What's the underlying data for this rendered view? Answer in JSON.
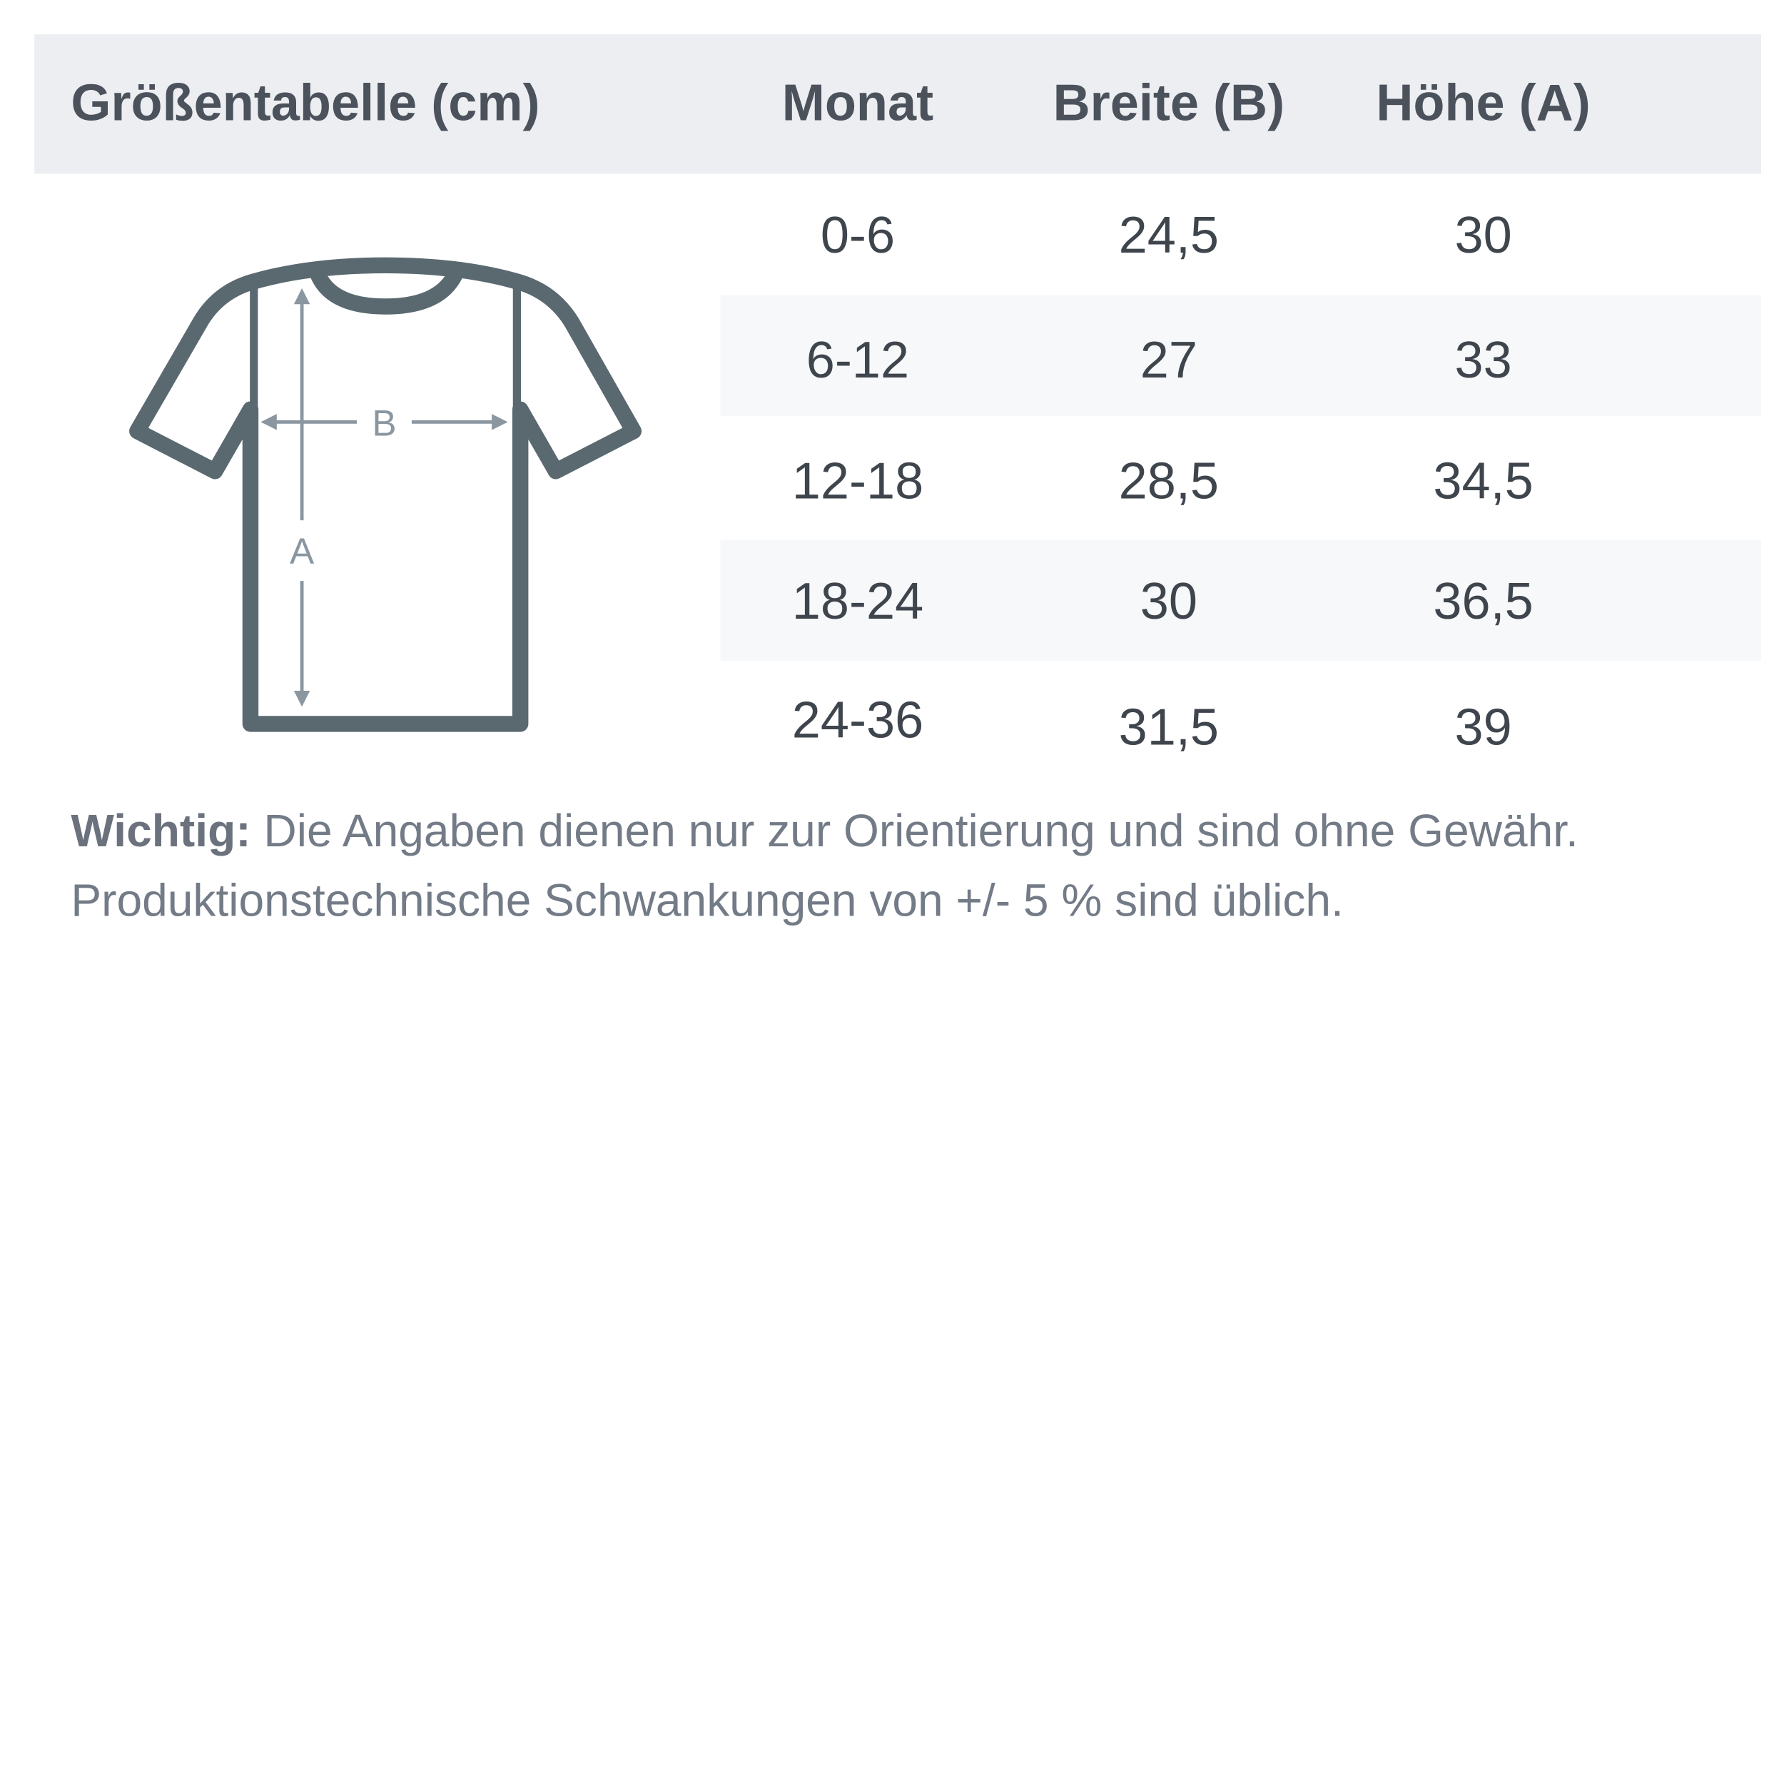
{
  "header": {
    "title": "Größentabelle (cm)",
    "columns": [
      "Monat",
      "Breite (B)",
      "Höhe (A)"
    ]
  },
  "rows": [
    [
      "0-6",
      "24,5",
      "30"
    ],
    [
      "6-12",
      "27",
      "33"
    ],
    [
      "12-18",
      "28,5",
      "34,5"
    ],
    [
      "18-24",
      "30",
      "36,5"
    ],
    [
      "24-36",
      "31,5",
      "39"
    ]
  ],
  "diagram": {
    "icon": "tshirt-measurement-icon",
    "width_label": "B",
    "height_label": "A"
  },
  "note": {
    "label": "Wichtig:",
    "line1": " Die Angaben dienen nur zur Orientierung und sind ohne Gewähr.",
    "line2": "Produktionstechnische Schwankungen von +/- 5 % sind üblich."
  },
  "colors": {
    "header_bg": "#eceef2",
    "stripe_bg": "#f7f8fa",
    "shirt": "#5a6970",
    "arrow": "#8a96a0"
  }
}
